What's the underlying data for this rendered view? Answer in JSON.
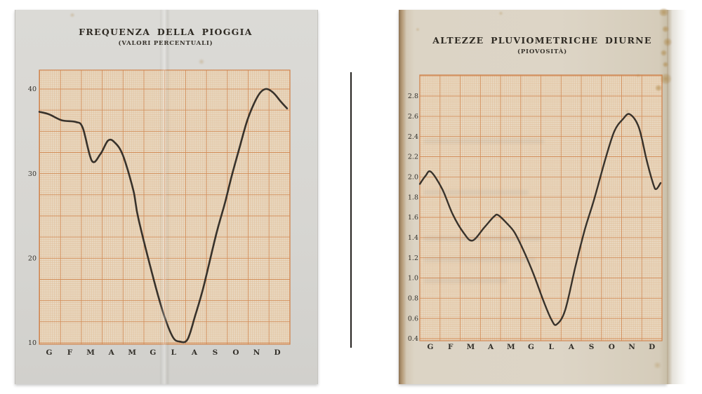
{
  "document": {
    "kind": "scanned book plates, two pages side by side",
    "left_page": {
      "title": "FREQUENZA DELLA PIOGGIA",
      "subtitle": "(VALORI PERCENTUALI)"
    },
    "right_page": {
      "title": "ALTEZZE PLUVIOMETRICHE DIURNE",
      "subtitle": "(PIOVOSITÀ)"
    }
  },
  "colors": {
    "paper_left": "#d7d6d2",
    "paper_right": "#dcd4c5",
    "graph_paper": "#e9d9c2",
    "grid_fine": "#d9a876",
    "grid_major": "#cf8149",
    "curve": "#38322b",
    "ink": "#33302a",
    "divider": "#24221f"
  },
  "chart_data": [
    {
      "type": "line",
      "title": "FREQUENZA DELLA PIOGGIA",
      "subtitle": "(VALORI PERCENTUALI)",
      "categories": [
        "G",
        "F",
        "M",
        "A",
        "M",
        "G",
        "L",
        "A",
        "S",
        "O",
        "N",
        "D"
      ],
      "values": [
        37.0,
        36.2,
        31.6,
        33.8,
        28.0,
        17.5,
        10.4,
        13.2,
        22.8,
        30.8,
        38.8,
        39.0
      ],
      "ylabels": [
        "10",
        "20",
        "30",
        "40"
      ],
      "ylim": [
        10,
        42
      ],
      "grid": true,
      "legend": null,
      "curve_points": [
        [
          -0.47,
          37.3
        ],
        [
          0,
          37.0
        ],
        [
          0.61,
          36.3
        ],
        [
          1.29,
          36.1
        ],
        [
          1.62,
          35.4
        ],
        [
          2.06,
          31.5
        ],
        [
          2.47,
          32.3
        ],
        [
          2.84,
          33.9
        ],
        [
          3.15,
          33.7
        ],
        [
          3.55,
          32.2
        ],
        [
          4.06,
          28.0
        ],
        [
          4.3,
          24.7
        ],
        [
          5.04,
          17.5
        ],
        [
          5.52,
          13.4
        ],
        [
          5.96,
          10.7
        ],
        [
          6.29,
          10.15
        ],
        [
          6.67,
          10.4
        ],
        [
          7.04,
          13.2
        ],
        [
          7.44,
          16.6
        ],
        [
          8.05,
          22.8
        ],
        [
          8.46,
          26.4
        ],
        [
          8.8,
          29.7
        ],
        [
          9.17,
          33.0
        ],
        [
          9.54,
          36.2
        ],
        [
          9.88,
          38.3
        ],
        [
          10.19,
          39.6
        ],
        [
          10.49,
          40.0
        ],
        [
          10.83,
          39.5
        ],
        [
          11.17,
          38.5
        ],
        [
          11.47,
          37.7
        ]
      ]
    },
    {
      "type": "line",
      "title": "ALTEZZE PLUVIOMETRICHE DIURNE",
      "subtitle": "(PIOVOSITÀ)",
      "categories": [
        "G",
        "F",
        "M",
        "A",
        "M",
        "G",
        "L",
        "A",
        "S",
        "O",
        "N",
        "D"
      ],
      "values": [
        2.04,
        1.63,
        1.37,
        1.61,
        1.45,
        1.04,
        0.56,
        1.12,
        1.77,
        2.45,
        2.61,
        2.0
      ],
      "ylabels": [
        "0.4",
        "0.6",
        "0.8",
        "1.0",
        "1.2",
        "1.4",
        "1.6",
        "1.8",
        "2.0",
        "2.2",
        "2.4",
        "2.6",
        "2.8"
      ],
      "ylim": [
        0.4,
        3.0
      ],
      "grid": true,
      "legend": null,
      "curve_points": [
        [
          -0.52,
          1.93
        ],
        [
          -0.24,
          2.01
        ],
        [
          0.03,
          2.05
        ],
        [
          0.59,
          1.88
        ],
        [
          1.11,
          1.63
        ],
        [
          1.64,
          1.45
        ],
        [
          2.09,
          1.37
        ],
        [
          2.68,
          1.5
        ],
        [
          3.17,
          1.61
        ],
        [
          3.38,
          1.62
        ],
        [
          3.8,
          1.54
        ],
        [
          4.18,
          1.45
        ],
        [
          4.63,
          1.27
        ],
        [
          5.12,
          1.04
        ],
        [
          5.64,
          0.76
        ],
        [
          6.03,
          0.58
        ],
        [
          6.27,
          0.54
        ],
        [
          6.69,
          0.68
        ],
        [
          7.21,
          1.12
        ],
        [
          7.67,
          1.48
        ],
        [
          8.12,
          1.77
        ],
        [
          8.68,
          2.17
        ],
        [
          9.13,
          2.45
        ],
        [
          9.55,
          2.57
        ],
        [
          9.9,
          2.62
        ],
        [
          10.35,
          2.49
        ],
        [
          10.73,
          2.17
        ],
        [
          11.08,
          1.92
        ],
        [
          11.22,
          1.88
        ],
        [
          11.43,
          1.94
        ]
      ]
    }
  ]
}
